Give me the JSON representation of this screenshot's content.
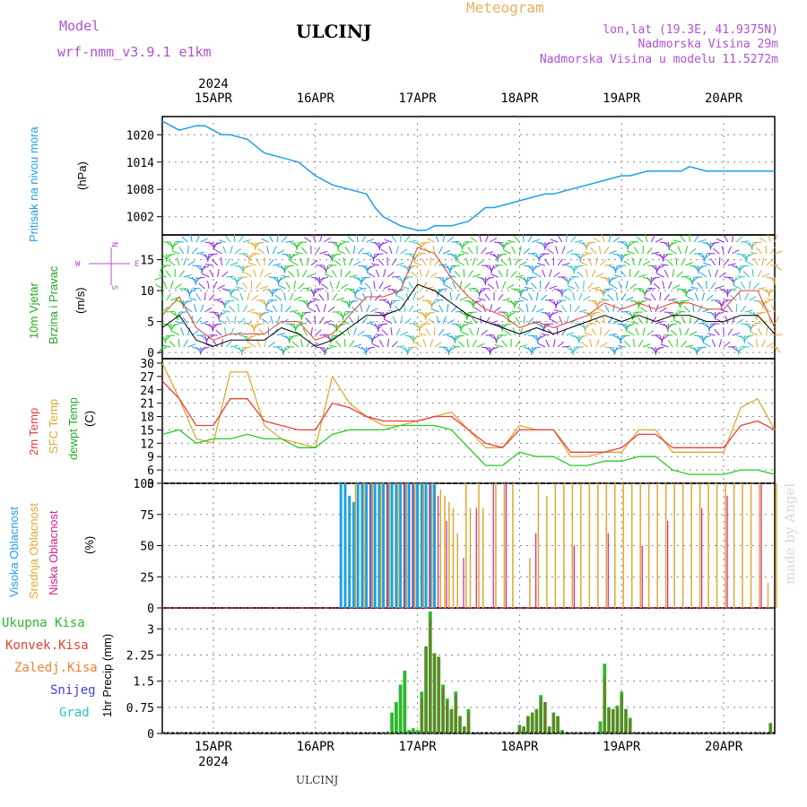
{
  "header": {
    "model_label": "Model",
    "model_name": "wrf-nmm_v3.9.1 e1km",
    "station": "ULCINJ",
    "product": "Meteogram",
    "coords": "lon,lat (19.3E, 41.9375N)",
    "elevation": "Nadmorska Visina 29m",
    "model_elevation": "Nadmorska Visina u modelu 11.5272m"
  },
  "footer": {
    "station": "ULCINJ",
    "credit": "made by Angel"
  },
  "time_axis": {
    "year": "2024",
    "ticks": [
      "15APR",
      "16APR",
      "17APR",
      "18APR",
      "19APR",
      "20APR"
    ],
    "range_hours": [
      0,
      144
    ]
  },
  "colors": {
    "pressure": "#1ea0e6",
    "speed": "#000000",
    "gust": "#e8402a",
    "temp2m": "#e8403a",
    "sfctemp": "#e0a830",
    "dewpt": "#22cc22",
    "cloud_high": "#1ea0e6",
    "cloud_mid": "#e0a830",
    "cloud_low": "#d0208a",
    "precip_total": "#2bb82b",
    "precip_conv": "#e84030",
    "precip_frz": "#f08030",
    "snow": "#4040e0",
    "hail": "#30c0c0",
    "title_magenta": "#b050d0",
    "meteogram_orange": "#e8b060",
    "grid": "#888888"
  },
  "panels": {
    "pressure": {
      "ylabel1": "Pritisak na nivou mora",
      "ylabel2": "(hPa)"
    },
    "wind": {
      "ylabel1": "10m Vjetar",
      "ylabel2": "Brzina i Pravac",
      "unit": "(m/s)",
      "legend_n": "N",
      "legend_w": "W",
      "legend_e": "E",
      "legend_s": "S"
    },
    "temp": {
      "ylabel1": "2m Temp",
      "ylabel2": "SFC Temp",
      "ylabel3": "dewpt Temp",
      "unit": "(C)"
    },
    "cloud": {
      "ylabel1": "Visoka Oblacnost",
      "ylabel2": "Srednja Oblacnost",
      "ylabel3": "Niska Oblacnost",
      "unit": "(%)"
    },
    "precip": {
      "legend": [
        "Ukupna Kisa",
        "Konvek.Kisa",
        "Zaledj.Kisa",
        "Snijeg",
        "Grad"
      ],
      "ylabel": "1hr Precip (mm)"
    }
  },
  "chart_data": [
    {
      "type": "line",
      "title": "",
      "ylabel": "(hPa)",
      "yticks": [
        1002,
        1008,
        1014,
        1020
      ],
      "ylim": [
        998,
        1024
      ],
      "grid": true,
      "series": [
        {
          "name": "Pritisak na nivou mora",
          "x": [
            0,
            2,
            4,
            8,
            10,
            14,
            16,
            20,
            24,
            28,
            32,
            36,
            40,
            44,
            48,
            50,
            52,
            56,
            60,
            62,
            64,
            68,
            72,
            76,
            78,
            82,
            86,
            90,
            92,
            96,
            100,
            104,
            108,
            110,
            114,
            118,
            122,
            124,
            128,
            132,
            136,
            140,
            144
          ],
          "y": [
            1023,
            1022,
            1021,
            1022,
            1022,
            1020,
            1020,
            1019,
            1016,
            1015,
            1014,
            1011,
            1009,
            1008,
            1007,
            1004,
            1002,
            1000,
            999,
            999,
            1000,
            1000,
            1001,
            1004,
            1004,
            1005,
            1006,
            1007,
            1007,
            1008,
            1009,
            1010,
            1011,
            1011,
            1012,
            1012,
            1012,
            1013,
            1012,
            1012,
            1012,
            1012,
            1012
          ]
        }
      ]
    },
    {
      "type": "line",
      "title": "",
      "ylabel": "(m/s)",
      "yticks": [
        0,
        5,
        10,
        15
      ],
      "ylim": [
        -1,
        19
      ],
      "grid": true,
      "series": [
        {
          "name": "speed",
          "x": [
            0,
            4,
            8,
            12,
            16,
            20,
            24,
            28,
            32,
            36,
            40,
            44,
            48,
            52,
            56,
            60,
            64,
            68,
            72,
            76,
            80,
            84,
            88,
            92,
            96,
            100,
            104,
            108,
            112,
            116,
            120,
            124,
            128,
            132,
            136,
            140,
            144
          ],
          "y": [
            4,
            6,
            2,
            1,
            2,
            2,
            2,
            4,
            3,
            1,
            2,
            4,
            6,
            6,
            7,
            11,
            10,
            8,
            6,
            5,
            4,
            3,
            4,
            3,
            4,
            5,
            6,
            5,
            6,
            5,
            6,
            6,
            5,
            5,
            6,
            6,
            3
          ]
        },
        {
          "name": "gust",
          "x": [
            0,
            4,
            8,
            12,
            16,
            20,
            24,
            28,
            32,
            36,
            40,
            44,
            48,
            52,
            56,
            60,
            64,
            68,
            72,
            76,
            80,
            84,
            88,
            92,
            96,
            100,
            104,
            108,
            112,
            116,
            120,
            124,
            128,
            132,
            136,
            140,
            144
          ],
          "y": [
            6,
            9,
            4,
            2,
            3,
            3,
            3,
            5,
            5,
            2,
            3,
            6,
            9,
            9,
            10,
            17,
            16,
            12,
            9,
            7,
            6,
            4,
            5,
            4,
            5,
            6,
            8,
            7,
            8,
            7,
            8,
            8,
            7,
            7,
            10,
            10,
            4
          ]
        }
      ]
    },
    {
      "type": "line",
      "title": "",
      "ylabel": "(C)",
      "yticks": [
        3,
        6,
        9,
        12,
        15,
        18,
        21,
        24,
        27,
        30
      ],
      "ylim": [
        3,
        31
      ],
      "grid": true,
      "series": [
        {
          "name": "2m Temp",
          "x": [
            0,
            4,
            8,
            12,
            16,
            20,
            24,
            28,
            32,
            36,
            40,
            44,
            48,
            52,
            56,
            60,
            64,
            68,
            72,
            76,
            80,
            84,
            88,
            92,
            96,
            100,
            104,
            108,
            112,
            116,
            120,
            124,
            128,
            132,
            136,
            140,
            144
          ],
          "y": [
            26,
            22,
            16,
            16,
            22,
            22,
            17,
            16,
            15,
            15,
            21,
            20,
            18,
            17,
            17,
            17,
            18,
            18,
            15,
            12,
            11,
            15,
            15,
            15,
            10,
            10,
            10,
            11,
            14,
            14,
            11,
            11,
            11,
            11,
            16,
            17,
            15
          ]
        },
        {
          "name": "SFC Temp",
          "x": [
            0,
            4,
            8,
            12,
            16,
            20,
            24,
            28,
            32,
            36,
            40,
            44,
            48,
            52,
            56,
            60,
            64,
            68,
            72,
            76,
            80,
            84,
            88,
            92,
            96,
            100,
            104,
            108,
            112,
            116,
            120,
            124,
            128,
            132,
            136,
            140,
            144
          ],
          "y": [
            30,
            22,
            13,
            12,
            28,
            28,
            16,
            13,
            12,
            11,
            27,
            21,
            18,
            16,
            16,
            17,
            18,
            19,
            15,
            11,
            11,
            16,
            15,
            15,
            9,
            9,
            10,
            10,
            15,
            15,
            10,
            10,
            10,
            10,
            20,
            22,
            15
          ]
        },
        {
          "name": "dewpt Temp",
          "x": [
            0,
            4,
            8,
            12,
            16,
            20,
            24,
            28,
            32,
            36,
            40,
            44,
            48,
            52,
            56,
            60,
            64,
            68,
            72,
            76,
            80,
            84,
            88,
            92,
            96,
            100,
            104,
            108,
            112,
            116,
            120,
            124,
            128,
            132,
            136,
            140,
            144
          ],
          "y": [
            14,
            15,
            12,
            13,
            13,
            14,
            13,
            13,
            11,
            11,
            14,
            15,
            15,
            15,
            16,
            16,
            16,
            15,
            11,
            7,
            7,
            10,
            9,
            9,
            7,
            7,
            8,
            8,
            9,
            9,
            6,
            5,
            5,
            5,
            6,
            6,
            5
          ]
        }
      ]
    },
    {
      "type": "bar",
      "title": "",
      "ylabel": "(%)",
      "yticks": [
        0,
        25,
        50,
        75,
        100
      ],
      "ylim": [
        0,
        100
      ],
      "grid": true,
      "series": [
        {
          "name": "Visoka Oblacnost",
          "x": [
            42,
            43,
            44,
            45,
            46,
            47,
            48,
            49,
            50,
            51,
            52,
            53,
            54,
            55,
            56,
            57,
            58,
            59,
            60,
            61,
            62,
            63,
            64
          ],
          "y": [
            100,
            100,
            90,
            85,
            100,
            100,
            100,
            100,
            100,
            100,
            100,
            100,
            100,
            100,
            100,
            100,
            100,
            100,
            100,
            100,
            100,
            100,
            100
          ]
        },
        {
          "name": "Srednja Oblacnost",
          "x": [
            45,
            47,
            49,
            51,
            53,
            55,
            57,
            59,
            61,
            63,
            65,
            66,
            67,
            68,
            69,
            71,
            72,
            74,
            75,
            78,
            80,
            82,
            86,
            88,
            90,
            92,
            94,
            96,
            98,
            100,
            102,
            104,
            106,
            108,
            110,
            112,
            114,
            116,
            118,
            120,
            122,
            124,
            126,
            128,
            130,
            132,
            134,
            136,
            138,
            140,
            142,
            144
          ],
          "y": [
            100,
            100,
            100,
            100,
            100,
            100,
            100,
            100,
            100,
            100,
            95,
            90,
            85,
            80,
            60,
            100,
            80,
            100,
            80,
            100,
            100,
            100,
            40,
            100,
            90,
            100,
            100,
            100,
            100,
            100,
            100,
            100,
            100,
            100,
            100,
            100,
            100,
            100,
            100,
            100,
            100,
            100,
            100,
            100,
            100,
            100,
            100,
            100,
            100,
            100,
            20,
            100
          ]
        },
        {
          "name": "Niska Oblacnost",
          "x": [
            48,
            52,
            56,
            58,
            62,
            64,
            66,
            70,
            73,
            77,
            80,
            87,
            96,
            104,
            112,
            118,
            126,
            132,
            140
          ],
          "y": [
            100,
            100,
            100,
            100,
            100,
            90,
            70,
            40,
            80,
            100,
            100,
            60,
            50,
            60,
            50,
            70,
            80,
            90,
            100
          ]
        }
      ]
    },
    {
      "type": "bar",
      "title": "",
      "ylabel": "1hr Precip (mm)",
      "yticks": [
        0,
        0.75,
        1.5,
        2.25,
        3
      ],
      "ylim": [
        0,
        3.6
      ],
      "grid": true,
      "series": [
        {
          "name": "Ukupna Kisa",
          "x": [
            53,
            54,
            55,
            56,
            57,
            58,
            59,
            60,
            61,
            62,
            63,
            64,
            65,
            66,
            67,
            68,
            69,
            70,
            71,
            72,
            84,
            85,
            86,
            87,
            88,
            89,
            90,
            91,
            92,
            93,
            94,
            95,
            103,
            104,
            105,
            106,
            107,
            108,
            109,
            110,
            143,
            144
          ],
          "y": [
            0.05,
            0.6,
            0.9,
            1.4,
            1.8,
            0.1,
            0.15,
            0.1,
            1.2,
            2.5,
            3.5,
            2.3,
            2.2,
            1.4,
            1.0,
            0.7,
            1.2,
            0.5,
            0.2,
            0.7,
            0.25,
            0.2,
            0.5,
            0.6,
            0.7,
            1.1,
            0.9,
            0.2,
            0.6,
            0.5,
            0.1,
            0.0,
            0.35,
            2.0,
            0.75,
            0.7,
            0.8,
            1.2,
            0.7,
            0.45,
            0.3,
            0.0
          ]
        },
        {
          "name": "Konvek.Kisa",
          "x": [
            53,
            54,
            55,
            56,
            57,
            58,
            59,
            60,
            61,
            62,
            63,
            64,
            65,
            66,
            67,
            68,
            69,
            70,
            71,
            72,
            84,
            85,
            86,
            87,
            88,
            89,
            90,
            91,
            92,
            93,
            94,
            95,
            103,
            104,
            105,
            106,
            107,
            108,
            109,
            110,
            143,
            144
          ],
          "y": [
            0.0,
            0.0,
            0.0,
            0.0,
            0.0,
            0.0,
            0.0,
            0.0,
            1.0,
            2.5,
            3.3,
            2.3,
            2.2,
            1.3,
            0.9,
            0.7,
            1.1,
            0.5,
            0.2,
            0.6,
            0.2,
            0.2,
            0.5,
            0.6,
            0.7,
            1.0,
            0.9,
            0.2,
            0.6,
            0.5,
            0.0,
            0.0,
            0.0,
            1.6,
            0.7,
            0.7,
            0.75,
            1.1,
            0.7,
            0.4,
            0.3,
            0.0
          ]
        }
      ]
    }
  ]
}
